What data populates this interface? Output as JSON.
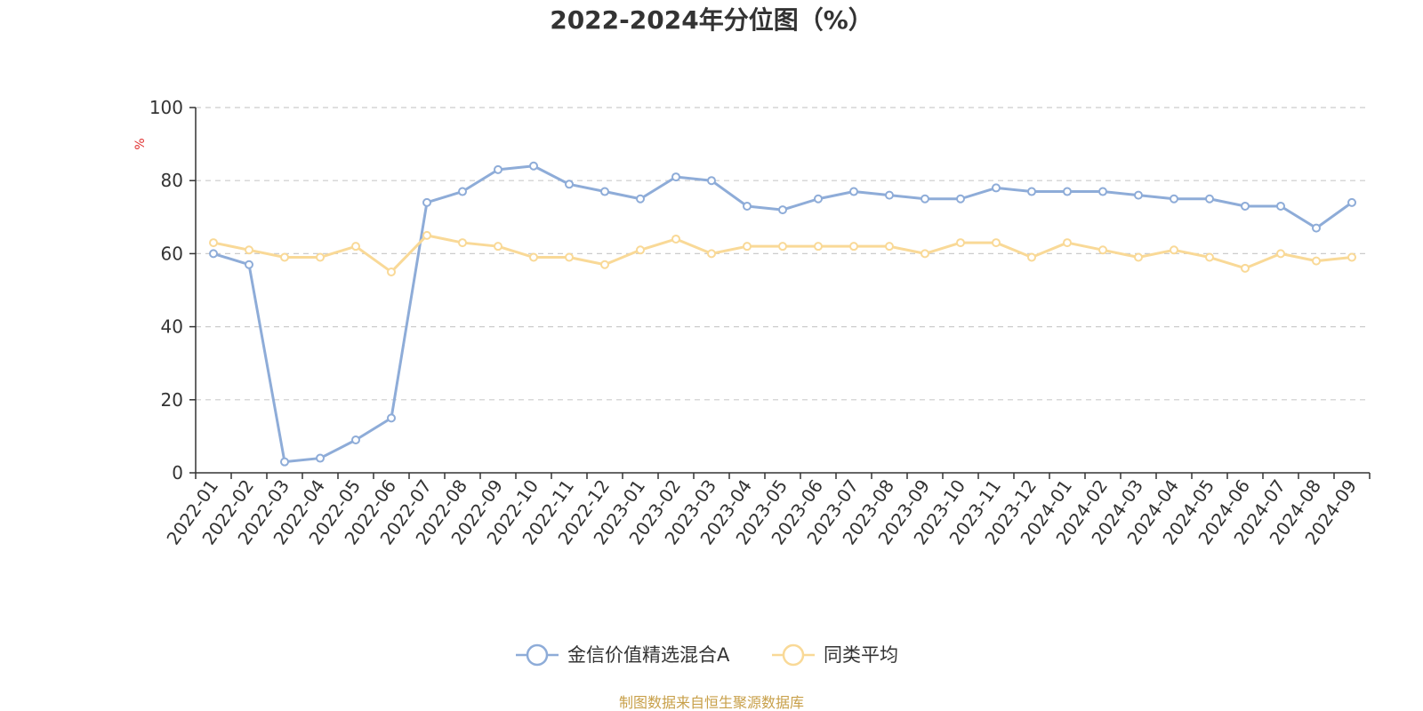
{
  "chart_data": {
    "type": "line",
    "title": "2022-2024年分位图（%）",
    "ylabel": "%",
    "xlabel": "",
    "ylim": [
      0,
      100
    ],
    "yticks": [
      0,
      20,
      40,
      60,
      80,
      100
    ],
    "grid": true,
    "legend_position": "bottom",
    "categories": [
      "2022-01",
      "2022-02",
      "2022-03",
      "2022-04",
      "2022-05",
      "2022-06",
      "2022-07",
      "2022-08",
      "2022-09",
      "2022-10",
      "2022-11",
      "2022-12",
      "2023-01",
      "2023-02",
      "2023-03",
      "2023-04",
      "2023-05",
      "2023-06",
      "2023-07",
      "2023-08",
      "2023-09",
      "2023-10",
      "2023-11",
      "2023-12",
      "2024-01",
      "2024-02",
      "2024-03",
      "2024-04",
      "2024-05",
      "2024-06",
      "2024-07",
      "2024-08",
      "2024-09"
    ],
    "series": [
      {
        "name": "金信价值精选混合A",
        "color": "#8eacd8",
        "values": [
          60,
          57,
          3,
          4,
          9,
          15,
          74,
          77,
          83,
          84,
          79,
          77,
          75,
          81,
          80,
          73,
          72,
          75,
          77,
          76,
          75,
          75,
          78,
          77,
          77,
          77,
          76,
          75,
          75,
          73,
          73,
          67,
          74
        ]
      },
      {
        "name": "同类平均",
        "color": "#f9d997",
        "values": [
          63,
          61,
          59,
          59,
          62,
          55,
          65,
          63,
          62,
          59,
          59,
          57,
          61,
          64,
          60,
          62,
          62,
          62,
          62,
          62,
          60,
          63,
          63,
          59,
          63,
          61,
          59,
          61,
          59,
          56,
          60,
          58,
          59
        ]
      }
    ]
  },
  "unit_color": "#e03030",
  "source": {
    "text": "制图数据来自恒生聚源数据库",
    "color": "#c8a04a"
  }
}
